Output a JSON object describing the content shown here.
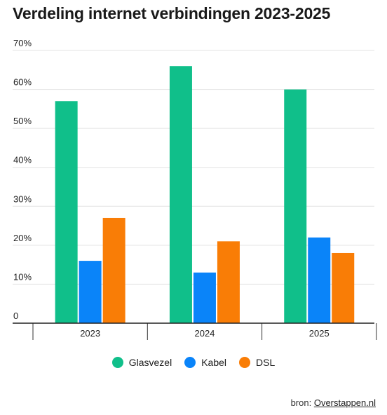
{
  "chart_data": {
    "type": "bar",
    "title": "Verdeling internet verbindingen 2023-2025",
    "categories": [
      "2023",
      "2024",
      "2025"
    ],
    "series": [
      {
        "name": "Glasvezel",
        "values": [
          57,
          66,
          60
        ],
        "color": "#10bf8a"
      },
      {
        "name": "Kabel",
        "values": [
          16,
          13,
          22
        ],
        "color": "#0a84f9"
      },
      {
        "name": "DSL",
        "values": [
          27,
          21,
          18
        ],
        "color": "#f97d06"
      }
    ],
    "ylim": [
      0,
      70
    ],
    "yticks": [
      "0",
      "10%",
      "20%",
      "30%",
      "40%",
      "50%",
      "60%",
      "70%"
    ],
    "xlabel": "",
    "ylabel": "",
    "grid": true,
    "legend_position": "bottom"
  },
  "source": {
    "prefix": "bron: ",
    "link_text": "Overstappen.nl"
  }
}
